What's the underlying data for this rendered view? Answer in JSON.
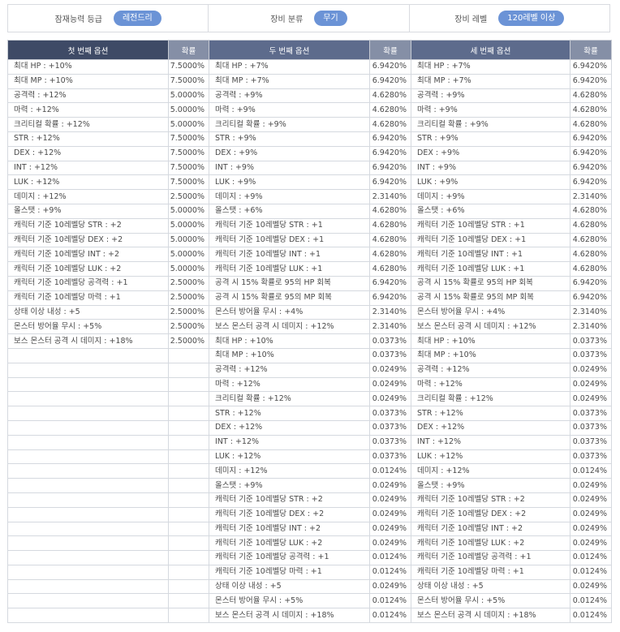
{
  "filters": [
    {
      "label": "잠재능력 등급",
      "value": "레전드리"
    },
    {
      "label": "장비 분류",
      "value": "무기"
    },
    {
      "label": "장비 레벨",
      "value": "120레벨 이상"
    }
  ],
  "table": {
    "headers": [
      "첫 번째 옵션",
      "확률",
      "두 번째 옵션",
      "확률",
      "세 번째 옵션",
      "확률"
    ],
    "rows": [
      [
        "최대 HP : +10%",
        "7.5000%",
        "최대 HP : +7%",
        "6.9420%",
        "최대 HP : +7%",
        "6.9420%"
      ],
      [
        "최대 MP : +10%",
        "7.5000%",
        "최대 MP : +7%",
        "6.9420%",
        "최대 MP : +7%",
        "6.9420%"
      ],
      [
        "공격력 : +12%",
        "5.0000%",
        "공격력 : +9%",
        "4.6280%",
        "공격력 : +9%",
        "4.6280%"
      ],
      [
        "마력 : +12%",
        "5.0000%",
        "마력 : +9%",
        "4.6280%",
        "마력 : +9%",
        "4.6280%"
      ],
      [
        "크리티컬 확률 : +12%",
        "5.0000%",
        "크리티컬 확률 : +9%",
        "4.6280%",
        "크리티컬 확률 : +9%",
        "4.6280%"
      ],
      [
        "STR : +12%",
        "7.5000%",
        "STR : +9%",
        "6.9420%",
        "STR : +9%",
        "6.9420%"
      ],
      [
        "DEX : +12%",
        "7.5000%",
        "DEX : +9%",
        "6.9420%",
        "DEX : +9%",
        "6.9420%"
      ],
      [
        "INT : +12%",
        "7.5000%",
        "INT : +9%",
        "6.9420%",
        "INT : +9%",
        "6.9420%"
      ],
      [
        "LUK : +12%",
        "7.5000%",
        "LUK : +9%",
        "6.9420%",
        "LUK : +9%",
        "6.9420%"
      ],
      [
        "데미지 : +12%",
        "2.5000%",
        "데미지 : +9%",
        "2.3140%",
        "데미지 : +9%",
        "2.3140%"
      ],
      [
        "올스탯 : +9%",
        "5.0000%",
        "올스탯 : +6%",
        "4.6280%",
        "올스탯 : +6%",
        "4.6280%"
      ],
      [
        "캐릭터 기준 10레벨당 STR : +2",
        "5.0000%",
        "캐릭터 기준 10레벨당 STR : +1",
        "4.6280%",
        "캐릭터 기준 10레벨당 STR : +1",
        "4.6280%"
      ],
      [
        "캐릭터 기준 10레벨당 DEX : +2",
        "5.0000%",
        "캐릭터 기준 10레벨당 DEX : +1",
        "4.6280%",
        "캐릭터 기준 10레벨당 DEX : +1",
        "4.6280%"
      ],
      [
        "캐릭터 기준 10레벨당 INT : +2",
        "5.0000%",
        "캐릭터 기준 10레벨당 INT : +1",
        "4.6280%",
        "캐릭터 기준 10레벨당 INT : +1",
        "4.6280%"
      ],
      [
        "캐릭터 기준 10레벨당 LUK : +2",
        "5.0000%",
        "캐릭터 기준 10레벨당 LUK : +1",
        "4.6280%",
        "캐릭터 기준 10레벨당 LUK : +1",
        "4.6280%"
      ],
      [
        "캐릭터 기준 10레벨당 공격력 : +1",
        "2.5000%",
        "공격 시 15% 확률로 95의 HP 회복",
        "6.9420%",
        "공격 시 15% 확률로 95의 HP 회복",
        "6.9420%"
      ],
      [
        "캐릭터 기준 10레벨당 마력 : +1",
        "2.5000%",
        "공격 시 15% 확률로 95의 MP 회복",
        "6.9420%",
        "공격 시 15% 확률로 95의 MP 회복",
        "6.9420%"
      ],
      [
        "상태 이상 내성 : +5",
        "2.5000%",
        "몬스터 방어율 무시 : +4%",
        "2.3140%",
        "몬스터 방어율 무시 : +4%",
        "2.3140%"
      ],
      [
        "몬스터 방어율 무시 : +5%",
        "2.5000%",
        "보스 몬스터 공격 시 데미지 : +12%",
        "2.3140%",
        "보스 몬스터 공격 시 데미지 : +12%",
        "2.3140%"
      ],
      [
        "보스 몬스터 공격 시 데미지 : +18%",
        "2.5000%",
        "최대 HP : +10%",
        "0.0373%",
        "최대 HP : +10%",
        "0.0373%"
      ],
      [
        "",
        "",
        "최대 MP : +10%",
        "0.0373%",
        "최대 MP : +10%",
        "0.0373%"
      ],
      [
        "",
        "",
        "공격력 : +12%",
        "0.0249%",
        "공격력 : +12%",
        "0.0249%"
      ],
      [
        "",
        "",
        "마력 : +12%",
        "0.0249%",
        "마력 : +12%",
        "0.0249%"
      ],
      [
        "",
        "",
        "크리티컬 확률 : +12%",
        "0.0249%",
        "크리티컬 확률 : +12%",
        "0.0249%"
      ],
      [
        "",
        "",
        "STR : +12%",
        "0.0373%",
        "STR : +12%",
        "0.0373%"
      ],
      [
        "",
        "",
        "DEX : +12%",
        "0.0373%",
        "DEX : +12%",
        "0.0373%"
      ],
      [
        "",
        "",
        "INT : +12%",
        "0.0373%",
        "INT : +12%",
        "0.0373%"
      ],
      [
        "",
        "",
        "LUK : +12%",
        "0.0373%",
        "LUK : +12%",
        "0.0373%"
      ],
      [
        "",
        "",
        "데미지 : +12%",
        "0.0124%",
        "데미지 : +12%",
        "0.0124%"
      ],
      [
        "",
        "",
        "올스탯 : +9%",
        "0.0249%",
        "올스탯 : +9%",
        "0.0249%"
      ],
      [
        "",
        "",
        "캐릭터 기준 10레벨당 STR : +2",
        "0.0249%",
        "캐릭터 기준 10레벨당 STR : +2",
        "0.0249%"
      ],
      [
        "",
        "",
        "캐릭터 기준 10레벨당 DEX : +2",
        "0.0249%",
        "캐릭터 기준 10레벨당 DEX : +2",
        "0.0249%"
      ],
      [
        "",
        "",
        "캐릭터 기준 10레벨당 INT : +2",
        "0.0249%",
        "캐릭터 기준 10레벨당 INT : +2",
        "0.0249%"
      ],
      [
        "",
        "",
        "캐릭터 기준 10레벨당 LUK : +2",
        "0.0249%",
        "캐릭터 기준 10레벨당 LUK : +2",
        "0.0249%"
      ],
      [
        "",
        "",
        "캐릭터 기준 10레벨당 공격력 : +1",
        "0.0124%",
        "캐릭터 기준 10레벨당 공격력 : +1",
        "0.0124%"
      ],
      [
        "",
        "",
        "캐릭터 기준 10레벨당 마력 : +1",
        "0.0124%",
        "캐릭터 기준 10레벨당 마력 : +1",
        "0.0124%"
      ],
      [
        "",
        "",
        "상태 이상 내성 : +5",
        "0.0249%",
        "상태 이상 내성 : +5",
        "0.0249%"
      ],
      [
        "",
        "",
        "몬스터 방어율 무시 : +5%",
        "0.0124%",
        "몬스터 방어율 무시 : +5%",
        "0.0124%"
      ],
      [
        "",
        "",
        "보스 몬스터 공격 시 데미지 : +18%",
        "0.0124%",
        "보스 몬스터 공격 시 데미지 : +18%",
        "0.0124%"
      ]
    ]
  }
}
